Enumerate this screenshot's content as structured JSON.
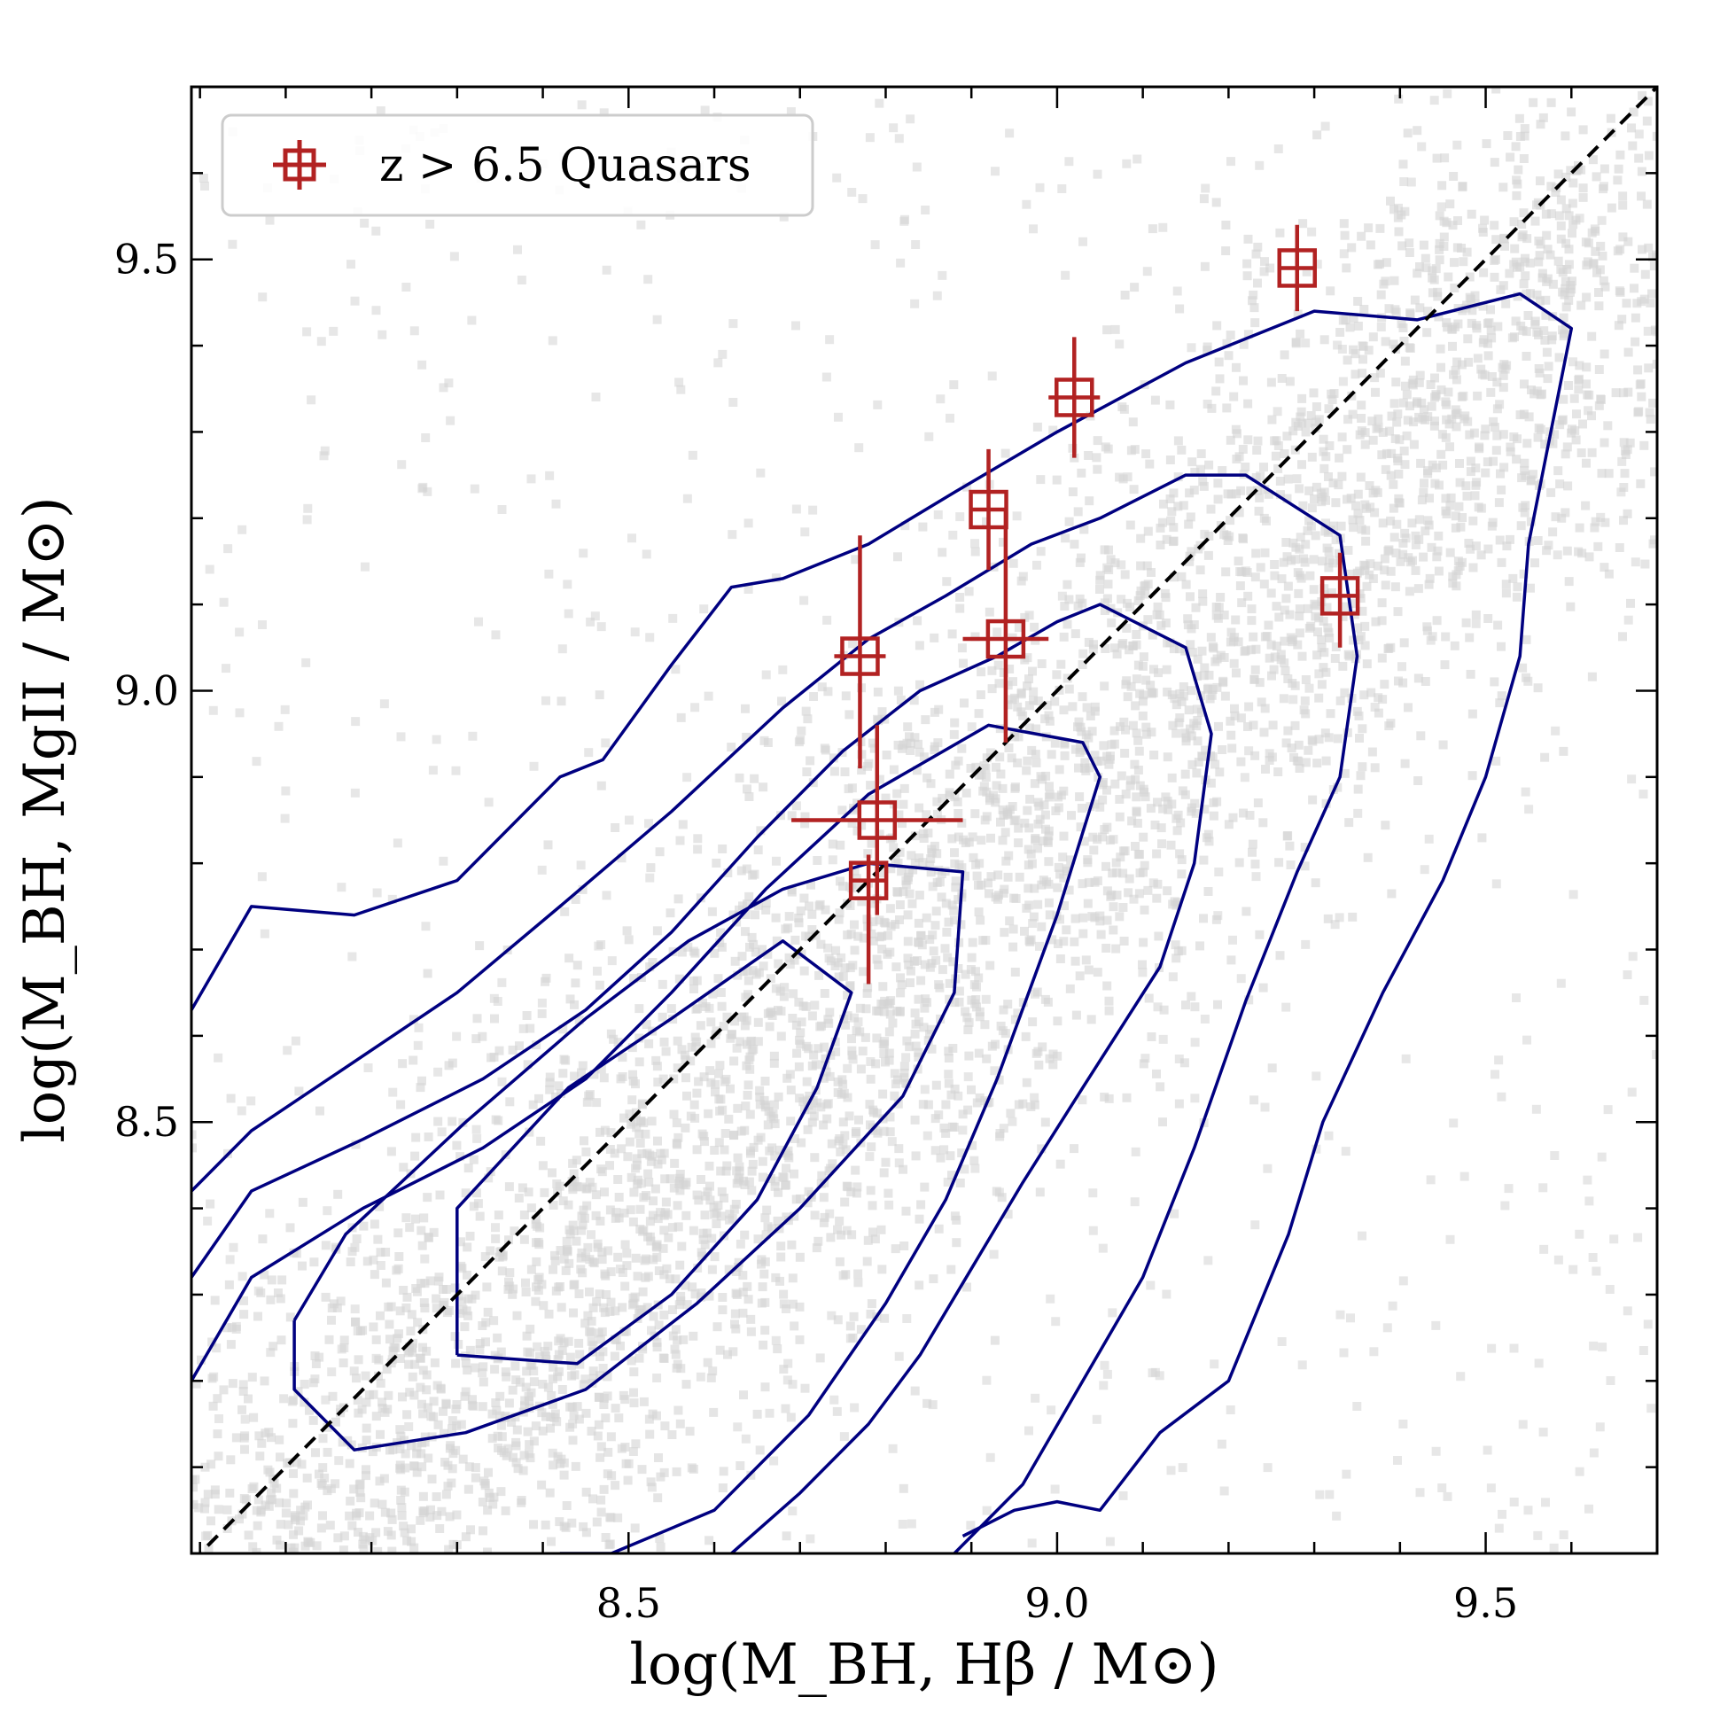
{
  "chart_data": {
    "type": "scatter",
    "title": "",
    "xlabel": "log(M_BH, Hβ / M⊙)",
    "ylabel": "log(M_BH, MgII / M⊙)",
    "xlim": [
      7.99,
      9.7
    ],
    "ylim": [
      8.0,
      9.7
    ],
    "x_major_ticks": [
      8.5,
      9.0,
      9.5
    ],
    "x_tick_labels": [
      "8.5",
      "9.0",
      "9.5"
    ],
    "y_major_ticks": [
      8.5,
      9.0,
      9.5
    ],
    "y_tick_labels": [
      "8.5",
      "9.0",
      "9.5"
    ],
    "minor_tick_step": 0.1,
    "grid": false,
    "legend": {
      "position": "top-left",
      "entries": [
        {
          "label": "z > 6.5 Quasars",
          "color": "#b22222",
          "marker": "square-with-errorbars"
        }
      ]
    },
    "one_to_one_line": {
      "x": [
        7.99,
        9.7
      ],
      "y": [
        7.99,
        9.7
      ],
      "style": "dashed",
      "color": "#000000"
    },
    "quasars": [
      {
        "x": 9.28,
        "y": 9.49,
        "xerr": 0.02,
        "yerr_lo": 0.05,
        "yerr_hi": 0.05
      },
      {
        "x": 9.02,
        "y": 9.34,
        "xerr": 0.03,
        "yerr_lo": 0.07,
        "yerr_hi": 0.07
      },
      {
        "x": 8.92,
        "y": 9.21,
        "xerr": 0.02,
        "yerr_lo": 0.07,
        "yerr_hi": 0.07
      },
      {
        "x": 9.33,
        "y": 9.11,
        "xerr": 0.02,
        "yerr_lo": 0.06,
        "yerr_hi": 0.05
      },
      {
        "x": 8.94,
        "y": 9.06,
        "xerr": 0.05,
        "yerr_lo": 0.12,
        "yerr_hi": 0.15
      },
      {
        "x": 8.77,
        "y": 9.04,
        "xerr": 0.03,
        "yerr_lo": 0.13,
        "yerr_hi": 0.14
      },
      {
        "x": 8.79,
        "y": 8.85,
        "xerr": 0.1,
        "yerr_lo": 0.11,
        "yerr_hi": 0.11
      },
      {
        "x": 8.78,
        "y": 8.78,
        "xerr": 0.02,
        "yerr_lo": 0.12,
        "yerr_hi": 0.03
      }
    ],
    "contours": [
      {
        "level": "outer",
        "x": [
          7.99,
          8.06,
          8.18,
          8.3,
          8.42,
          8.47,
          8.55,
          8.62,
          8.68,
          8.78,
          8.88,
          9.0,
          9.15,
          9.25,
          9.3,
          9.42,
          9.54,
          9.6,
          9.55,
          9.54,
          9.5,
          9.45,
          9.38,
          9.31,
          9.27,
          9.2,
          9.12,
          9.05,
          9.0,
          8.95,
          8.89
        ],
        "y": [
          8.63,
          8.75,
          8.74,
          8.78,
          8.9,
          8.92,
          9.03,
          9.12,
          9.13,
          9.17,
          9.23,
          9.3,
          9.38,
          9.42,
          9.44,
          9.43,
          9.46,
          9.42,
          9.17,
          9.04,
          8.9,
          8.78,
          8.65,
          8.5,
          8.37,
          8.2,
          8.14,
          8.05,
          8.06,
          8.05,
          8.02
        ]
      },
      {
        "level": "2",
        "x": [
          7.99,
          8.06,
          8.15,
          8.3,
          8.42,
          8.55,
          8.68,
          8.78,
          8.87,
          8.97,
          9.05,
          9.15,
          9.22,
          9.33,
          9.35,
          9.33,
          9.28,
          9.22,
          9.16,
          9.1,
          9.03,
          8.96,
          8.88
        ],
        "y": [
          8.42,
          8.49,
          8.55,
          8.65,
          8.75,
          8.86,
          8.98,
          9.06,
          9.11,
          9.17,
          9.2,
          9.25,
          9.25,
          9.18,
          9.04,
          8.9,
          8.79,
          8.64,
          8.47,
          8.32,
          8.2,
          8.08,
          8.0
        ]
      },
      {
        "level": "3",
        "x": [
          7.99,
          8.06,
          8.19,
          8.33,
          8.45,
          8.55,
          8.65,
          8.75,
          8.84,
          8.93,
          9.0,
          9.05,
          9.15,
          9.18,
          9.16,
          9.12,
          9.03,
          8.96,
          8.9,
          8.84,
          8.78,
          8.7,
          8.62
        ],
        "y": [
          8.32,
          8.42,
          8.48,
          8.55,
          8.63,
          8.72,
          8.83,
          8.93,
          9.0,
          9.04,
          9.08,
          9.1,
          9.05,
          8.95,
          8.8,
          8.68,
          8.54,
          8.43,
          8.33,
          8.23,
          8.15,
          8.07,
          8.0
        ]
      },
      {
        "level": "4",
        "x": [
          7.99,
          8.06,
          8.19,
          8.33,
          8.45,
          8.55,
          8.66,
          8.78,
          8.92,
          9.03,
          9.05,
          9.0,
          8.93,
          8.87,
          8.8,
          8.71,
          8.6,
          8.48,
          8.42
        ],
        "y": [
          8.2,
          8.32,
          8.4,
          8.47,
          8.55,
          8.65,
          8.77,
          8.88,
          8.96,
          8.94,
          8.9,
          8.74,
          8.55,
          8.41,
          8.29,
          8.16,
          8.05,
          8.0,
          8.0
        ]
      },
      {
        "level": "5",
        "x": [
          8.11,
          8.11,
          8.18,
          8.31,
          8.45,
          8.58,
          8.7,
          8.82,
          8.88,
          8.89,
          8.78,
          8.68,
          8.57,
          8.45,
          8.31,
          8.17,
          8.11
        ],
        "y": [
          8.27,
          8.19,
          8.12,
          8.14,
          8.19,
          8.29,
          8.4,
          8.53,
          8.65,
          8.79,
          8.8,
          8.77,
          8.71,
          8.62,
          8.5,
          8.37,
          8.27
        ]
      },
      {
        "level": "inner",
        "x": [
          8.3,
          8.3,
          8.43,
          8.55,
          8.68,
          8.76,
          8.72,
          8.65,
          8.55,
          8.44,
          8.3
        ],
        "y": [
          8.23,
          8.4,
          8.54,
          8.62,
          8.71,
          8.65,
          8.54,
          8.41,
          8.3,
          8.22,
          8.23
        ]
      }
    ],
    "colors": {
      "scatter_points": "#d3d3d3",
      "contours": "#000080",
      "quasars": "#b22222",
      "one_to_one_line": "#000000"
    }
  }
}
